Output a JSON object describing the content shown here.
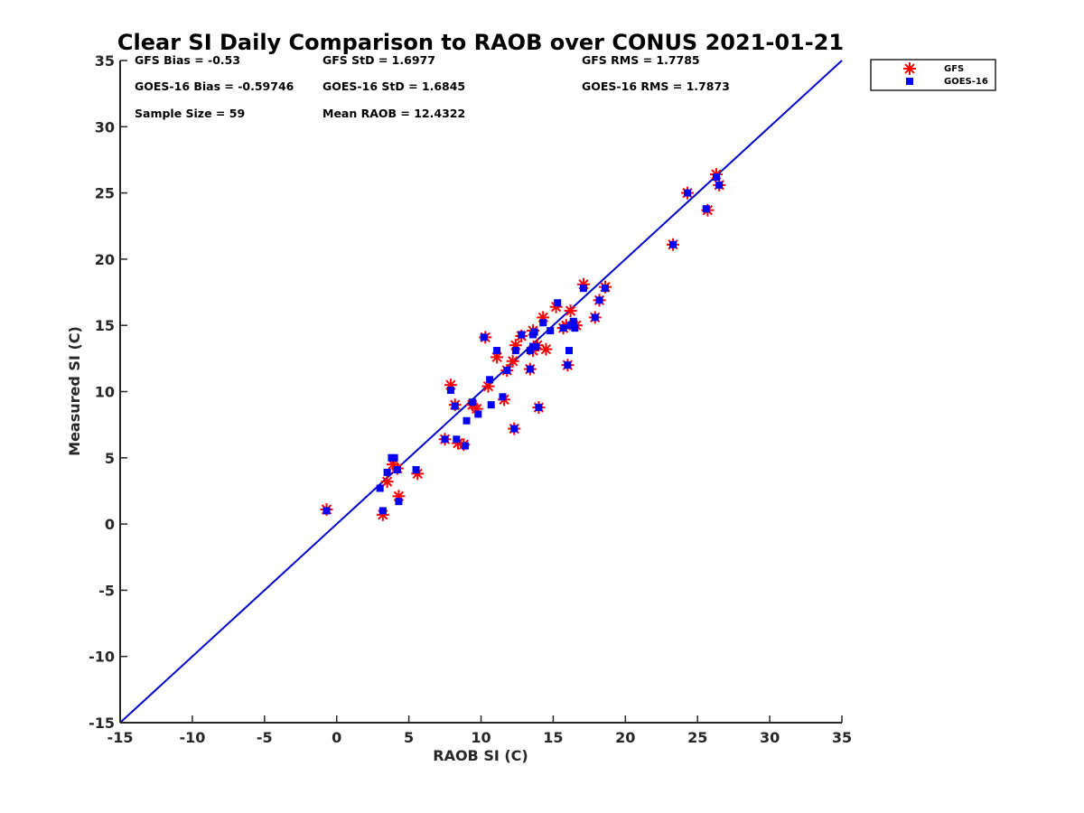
{
  "chart_data": {
    "type": "scatter",
    "title": "Clear SI Daily Comparison to RAOB over CONUS 2021-01-21",
    "xlabel": "RAOB SI (C)",
    "ylabel": "Measured SI (C)",
    "xlim": [
      -15,
      35
    ],
    "ylim": [
      -15,
      35
    ],
    "xticks": [
      -15,
      -10,
      -5,
      0,
      5,
      10,
      15,
      20,
      25,
      30,
      35
    ],
    "yticks": [
      -15,
      -10,
      -5,
      0,
      5,
      10,
      15,
      20,
      25,
      30,
      35
    ],
    "grid": false,
    "legend_position": "outside-top-right",
    "reference_line": {
      "type": "one-to-one",
      "color": "#0000cc"
    },
    "stats": [
      {
        "key": "gfs_bias",
        "text": "GFS Bias = -0.53"
      },
      {
        "key": "gfs_std",
        "text": "GFS StD = 1.6977"
      },
      {
        "key": "gfs_rms",
        "text": "GFS RMS = 1.7785"
      },
      {
        "key": "goes_bias",
        "text": "GOES-16 Bias = -0.59746"
      },
      {
        "key": "goes_std",
        "text": "GOES-16 StD = 1.6845"
      },
      {
        "key": "goes_rms",
        "text": "GOES-16 RMS = 1.7873"
      },
      {
        "key": "sample_size",
        "text": "Sample Size = 59"
      },
      {
        "key": "mean_raob",
        "text": "Mean RAOB = 12.4322"
      }
    ],
    "series": [
      {
        "name": "GFS",
        "marker": "asterisk",
        "color": "#ff0000",
        "points": [
          [
            -0.7,
            1.1
          ],
          [
            3.2,
            0.7
          ],
          [
            3.5,
            3.2
          ],
          [
            3.9,
            4.5
          ],
          [
            4.2,
            4.2
          ],
          [
            4.3,
            2.1
          ],
          [
            5.6,
            3.8
          ],
          [
            7.5,
            6.4
          ],
          [
            7.9,
            10.5
          ],
          [
            8.2,
            9.0
          ],
          [
            8.4,
            6.1
          ],
          [
            8.8,
            6.0
          ],
          [
            9.4,
            9.0
          ],
          [
            9.7,
            8.7
          ],
          [
            10.3,
            14.1
          ],
          [
            10.5,
            10.4
          ],
          [
            11.1,
            12.6
          ],
          [
            11.6,
            9.4
          ],
          [
            11.8,
            11.6
          ],
          [
            12.2,
            12.3
          ],
          [
            12.3,
            7.2
          ],
          [
            12.4,
            13.5
          ],
          [
            12.8,
            14.2
          ],
          [
            13.4,
            11.7
          ],
          [
            13.6,
            14.6
          ],
          [
            13.6,
            13.1
          ],
          [
            13.9,
            13.5
          ],
          [
            14.0,
            8.8
          ],
          [
            14.3,
            15.6
          ],
          [
            14.5,
            13.2
          ],
          [
            15.2,
            16.4
          ],
          [
            15.7,
            14.8
          ],
          [
            15.9,
            15.0
          ],
          [
            16.0,
            12.0
          ],
          [
            16.2,
            16.1
          ],
          [
            16.4,
            15.0
          ],
          [
            16.6,
            15.0
          ],
          [
            17.1,
            18.1
          ],
          [
            17.9,
            15.6
          ],
          [
            18.2,
            16.9
          ],
          [
            18.6,
            17.9
          ],
          [
            23.3,
            21.1
          ],
          [
            24.3,
            25.0
          ],
          [
            25.7,
            23.7
          ],
          [
            26.3,
            26.4
          ],
          [
            26.5,
            25.6
          ]
        ]
      },
      {
        "name": "GOES-16",
        "marker": "square",
        "color": "#0000ee",
        "points": [
          [
            -0.7,
            1.0
          ],
          [
            3.0,
            2.7
          ],
          [
            3.2,
            1.0
          ],
          [
            3.5,
            3.9
          ],
          [
            3.8,
            5.0
          ],
          [
            4.0,
            5.0
          ],
          [
            4.2,
            4.1
          ],
          [
            4.3,
            1.7
          ],
          [
            5.5,
            4.1
          ],
          [
            7.5,
            6.4
          ],
          [
            7.9,
            10.1
          ],
          [
            8.2,
            8.9
          ],
          [
            8.3,
            6.4
          ],
          [
            8.9,
            5.9
          ],
          [
            9.0,
            7.8
          ],
          [
            9.4,
            9.2
          ],
          [
            9.8,
            8.3
          ],
          [
            10.2,
            14.1
          ],
          [
            10.6,
            10.9
          ],
          [
            10.7,
            9.0
          ],
          [
            11.1,
            13.1
          ],
          [
            11.5,
            9.6
          ],
          [
            11.8,
            11.6
          ],
          [
            12.3,
            7.2
          ],
          [
            12.4,
            13.1
          ],
          [
            12.8,
            14.3
          ],
          [
            13.4,
            11.7
          ],
          [
            13.4,
            13.1
          ],
          [
            13.6,
            14.3
          ],
          [
            13.6,
            13.4
          ],
          [
            13.7,
            14.5
          ],
          [
            13.8,
            13.4
          ],
          [
            14.0,
            8.8
          ],
          [
            14.3,
            15.2
          ],
          [
            14.8,
            14.6
          ],
          [
            15.3,
            16.7
          ],
          [
            15.7,
            14.8
          ],
          [
            16.0,
            12.0
          ],
          [
            16.1,
            13.1
          ],
          [
            16.2,
            15.0
          ],
          [
            16.4,
            15.3
          ],
          [
            16.5,
            14.8
          ],
          [
            17.1,
            17.8
          ],
          [
            17.9,
            15.6
          ],
          [
            18.2,
            16.9
          ],
          [
            18.6,
            17.8
          ],
          [
            23.3,
            21.1
          ],
          [
            24.3,
            25.0
          ],
          [
            25.6,
            23.8
          ],
          [
            26.3,
            26.2
          ],
          [
            26.5,
            25.6
          ]
        ]
      }
    ]
  }
}
